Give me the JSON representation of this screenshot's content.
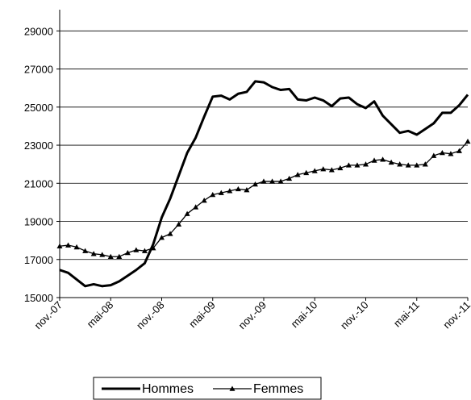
{
  "chart_data": {
    "type": "line",
    "categories": [
      "nov.-07",
      null,
      null,
      null,
      null,
      null,
      "mai-08",
      null,
      null,
      null,
      null,
      null,
      "nov.-08",
      null,
      null,
      null,
      null,
      null,
      "mai-09",
      null,
      null,
      null,
      null,
      null,
      "nov.-09",
      null,
      null,
      null,
      null,
      null,
      "mai-10",
      null,
      null,
      null,
      null,
      null,
      "nov.-10",
      null,
      null,
      null,
      null,
      null,
      "mai-11",
      null,
      null,
      null,
      null,
      null,
      "nov.-11"
    ],
    "series": [
      {
        "name": "Hommes",
        "color": "#000000",
        "marker": "none",
        "values": [
          16450,
          16300,
          15950,
          15600,
          15700,
          15600,
          15650,
          15850,
          16150,
          16450,
          16800,
          17800,
          19200,
          20200,
          21400,
          22600,
          23400,
          24500,
          25550,
          25600,
          25400,
          25700,
          25800,
          26350,
          26300,
          26050,
          25900,
          25950,
          25400,
          25350,
          25500,
          25350,
          25050,
          25450,
          25500,
          25150,
          24950,
          25300,
          24550,
          24100,
          23650,
          23750,
          23550,
          23850,
          24150,
          24700,
          24700,
          25100,
          25650
        ]
      },
      {
        "name": "Femmes",
        "color": "#000000",
        "marker": "triangle",
        "values": [
          17700,
          17750,
          17650,
          17450,
          17300,
          17250,
          17150,
          17150,
          17350,
          17500,
          17450,
          17600,
          18150,
          18350,
          18850,
          19400,
          19750,
          20100,
          20400,
          20500,
          20600,
          20700,
          20650,
          20950,
          21100,
          21100,
          21100,
          21250,
          21450,
          21550,
          21650,
          21750,
          21700,
          21800,
          21950,
          21950,
          22000,
          22200,
          22250,
          22100,
          22000,
          21950,
          21950,
          22000,
          22450,
          22600,
          22550,
          22700,
          23200
        ]
      }
    ],
    "ylim": [
      15000,
      30000
    ],
    "yticks": [
      15000,
      17000,
      19000,
      21000,
      23000,
      25000,
      27000,
      29000
    ],
    "grid": true,
    "legend": "bottom"
  }
}
